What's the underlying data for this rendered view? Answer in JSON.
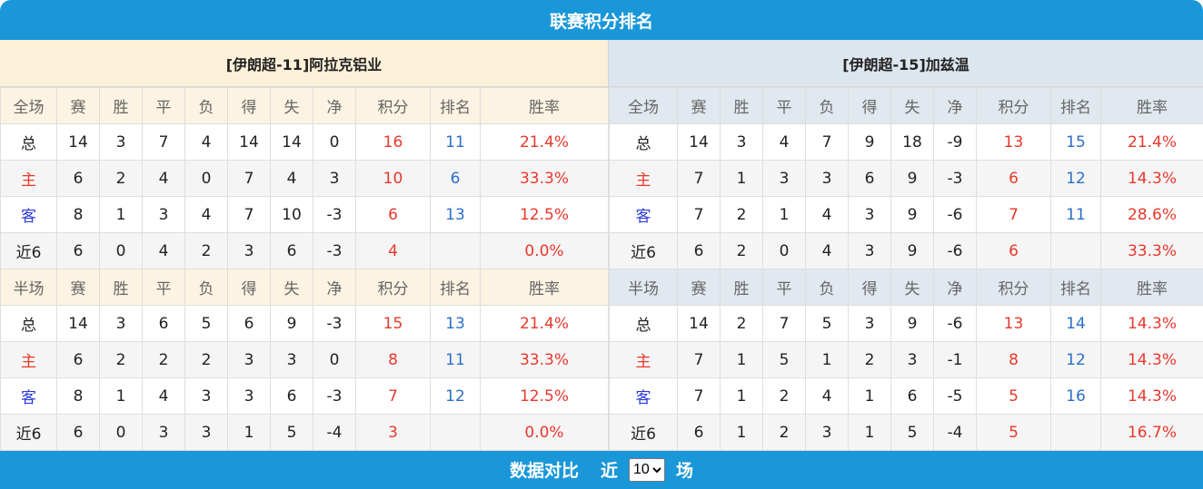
{
  "header": {
    "title": "联赛积分排名"
  },
  "teams": [
    {
      "title": "[伊朗超-11]阿拉克铝业",
      "sections": [
        {
          "header": [
            "全场",
            "赛",
            "胜",
            "平",
            "负",
            "得",
            "失",
            "净",
            "积分",
            "排名",
            "胜率"
          ],
          "rows": [
            [
              "总",
              "14",
              "3",
              "7",
              "4",
              "14",
              "14",
              "0",
              "16",
              "11",
              "21.4%"
            ],
            [
              "主",
              "6",
              "2",
              "4",
              "0",
              "7",
              "4",
              "3",
              "10",
              "6",
              "33.3%"
            ],
            [
              "客",
              "8",
              "1",
              "3",
              "4",
              "7",
              "10",
              "-3",
              "6",
              "13",
              "12.5%"
            ],
            [
              "近6",
              "6",
              "0",
              "4",
              "2",
              "3",
              "6",
              "-3",
              "4",
              null,
              "0.0%"
            ]
          ]
        },
        {
          "header": [
            "半场",
            "赛",
            "胜",
            "平",
            "负",
            "得",
            "失",
            "净",
            "积分",
            "排名",
            "胜率"
          ],
          "rows": [
            [
              "总",
              "14",
              "3",
              "6",
              "5",
              "6",
              "9",
              "-3",
              "15",
              "13",
              "21.4%"
            ],
            [
              "主",
              "6",
              "2",
              "2",
              "2",
              "3",
              "3",
              "0",
              "8",
              "11",
              "33.3%"
            ],
            [
              "客",
              "8",
              "1",
              "4",
              "3",
              "3",
              "6",
              "-3",
              "7",
              "12",
              "12.5%"
            ],
            [
              "近6",
              "6",
              "0",
              "3",
              "3",
              "1",
              "5",
              "-4",
              "3",
              null,
              "0.0%"
            ]
          ]
        }
      ]
    },
    {
      "title": "[伊朗超-15]加兹温",
      "sections": [
        {
          "header": [
            "全场",
            "赛",
            "胜",
            "平",
            "负",
            "得",
            "失",
            "净",
            "积分",
            "排名",
            "胜率"
          ],
          "rows": [
            [
              "总",
              "14",
              "3",
              "4",
              "7",
              "9",
              "18",
              "-9",
              "13",
              "15",
              "21.4%"
            ],
            [
              "主",
              "7",
              "1",
              "3",
              "3",
              "6",
              "9",
              "-3",
              "6",
              "12",
              "14.3%"
            ],
            [
              "客",
              "7",
              "2",
              "1",
              "4",
              "3",
              "9",
              "-6",
              "7",
              "11",
              "28.6%"
            ],
            [
              "近6",
              "6",
              "2",
              "0",
              "4",
              "3",
              "9",
              "-6",
              "6",
              null,
              "33.3%"
            ]
          ]
        },
        {
          "header": [
            "半场",
            "赛",
            "胜",
            "平",
            "负",
            "得",
            "失",
            "净",
            "积分",
            "排名",
            "胜率"
          ],
          "rows": [
            [
              "总",
              "14",
              "2",
              "7",
              "5",
              "3",
              "9",
              "-6",
              "13",
              "14",
              "14.3%"
            ],
            [
              "主",
              "7",
              "1",
              "5",
              "1",
              "2",
              "3",
              "-1",
              "8",
              "12",
              "14.3%"
            ],
            [
              "客",
              "7",
              "1",
              "2",
              "4",
              "1",
              "6",
              "-5",
              "5",
              "16",
              "14.3%"
            ],
            [
              "近6",
              "6",
              "1",
              "2",
              "3",
              "1",
              "5",
              "-4",
              "5",
              null,
              "16.7%"
            ]
          ]
        }
      ]
    }
  ],
  "footer": {
    "label": "数据对比",
    "prefix": "近",
    "selected": "10",
    "suffix": "场"
  }
}
